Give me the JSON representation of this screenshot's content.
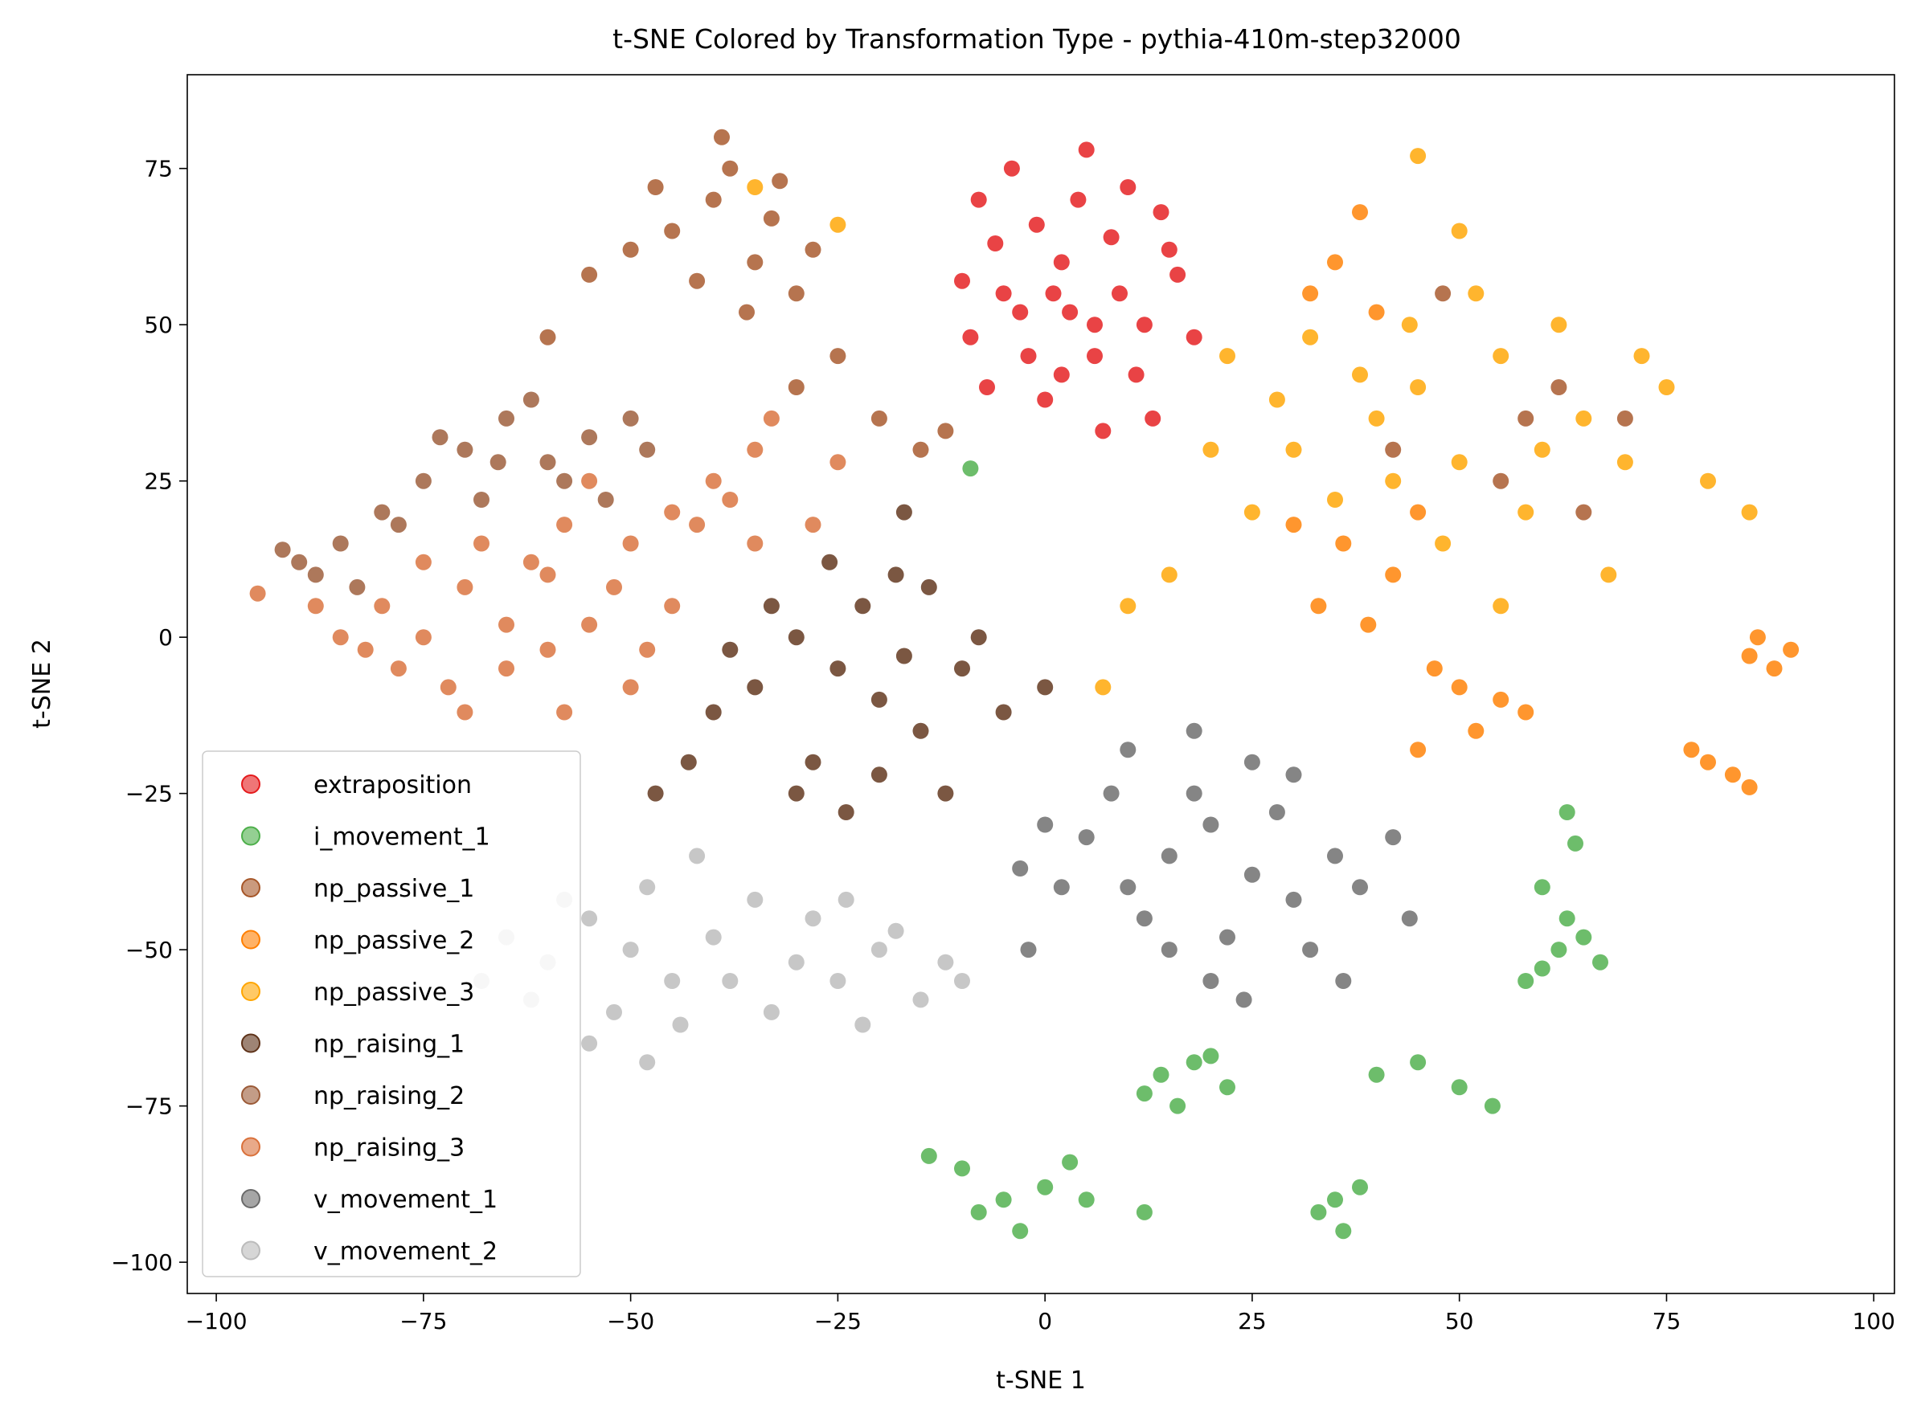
{
  "chart_data": {
    "type": "scatter",
    "title": "t-SNE Colored by Transformation Type - pythia-410m-step32000",
    "xlabel": "t-SNE 1",
    "ylabel": "t-SNE 2",
    "xlim": [
      -103.5,
      102.5
    ],
    "ylim": [
      -105,
      90
    ],
    "xticks": [
      -100,
      -75,
      -50,
      -25,
      0,
      25,
      50,
      75,
      100
    ],
    "yticks": [
      -100,
      -75,
      -50,
      -25,
      0,
      25,
      50,
      75
    ],
    "xtick_labels": [
      "−100",
      "−75",
      "−50",
      "−25",
      "0",
      "25",
      "50",
      "75",
      "100"
    ],
    "ytick_labels": [
      "−100",
      "−75",
      "−50",
      "−25",
      "0",
      "25",
      "50",
      "75"
    ],
    "grid": false,
    "legend_position": "lower-left",
    "series": [
      {
        "name": "extraposition",
        "color": "#e41a1c",
        "points": [
          [
            -3,
            52
          ],
          [
            2,
            60
          ],
          [
            6,
            45
          ],
          [
            -6,
            63
          ],
          [
            9,
            55
          ],
          [
            0,
            38
          ],
          [
            12,
            50
          ],
          [
            -10,
            57
          ],
          [
            4,
            70
          ],
          [
            -2,
            45
          ],
          [
            15,
            62
          ],
          [
            7,
            33
          ],
          [
            -7,
            40
          ],
          [
            11,
            42
          ],
          [
            3,
            52
          ],
          [
            -4,
            75
          ],
          [
            5,
            78
          ],
          [
            18,
            48
          ],
          [
            -1,
            66
          ],
          [
            8,
            64
          ],
          [
            13,
            35
          ],
          [
            -9,
            48
          ],
          [
            1,
            55
          ],
          [
            10,
            72
          ],
          [
            16,
            58
          ],
          [
            -5,
            55
          ],
          [
            6,
            50
          ],
          [
            2,
            42
          ],
          [
            14,
            68
          ],
          [
            -8,
            70
          ]
        ]
      },
      {
        "name": "i_movement_1",
        "color": "#4daf4a",
        "points": [
          [
            -10,
            -85
          ],
          [
            -5,
            -90
          ],
          [
            0,
            -88
          ],
          [
            -14,
            -83
          ],
          [
            -3,
            -95
          ],
          [
            3,
            -84
          ],
          [
            -8,
            -92
          ],
          [
            5,
            -90
          ],
          [
            14,
            -70
          ],
          [
            18,
            -68
          ],
          [
            22,
            -72
          ],
          [
            12,
            -73
          ],
          [
            20,
            -67
          ],
          [
            16,
            -75
          ],
          [
            35,
            -90
          ],
          [
            38,
            -88
          ],
          [
            33,
            -92
          ],
          [
            36,
            -95
          ],
          [
            62,
            -50
          ],
          [
            65,
            -48
          ],
          [
            60,
            -53
          ],
          [
            67,
            -52
          ],
          [
            63,
            -45
          ],
          [
            58,
            -55
          ],
          [
            50,
            -72
          ],
          [
            45,
            -68
          ],
          [
            54,
            -75
          ],
          [
            40,
            -70
          ],
          [
            63,
            -28
          ],
          [
            64,
            -33
          ],
          [
            12,
            -92
          ],
          [
            60,
            -40
          ],
          [
            -9,
            27
          ]
        ]
      },
      {
        "name": "np_passive_1",
        "color": "#a65628",
        "points": [
          [
            -40,
            70
          ],
          [
            -35,
            60
          ],
          [
            -45,
            65
          ],
          [
            -30,
            55
          ],
          [
            -38,
            75
          ],
          [
            -42,
            57
          ],
          [
            -33,
            67
          ],
          [
            -28,
            62
          ],
          [
            -47,
            72
          ],
          [
            -36,
            52
          ],
          [
            -50,
            62
          ],
          [
            -39,
            80
          ],
          [
            -32,
            73
          ],
          [
            -55,
            58
          ],
          [
            -25,
            45
          ],
          [
            -20,
            35
          ],
          [
            -15,
            30
          ],
          [
            58,
            35
          ],
          [
            62,
            40
          ],
          [
            65,
            20
          ],
          [
            55,
            25
          ],
          [
            48,
            55
          ],
          [
            70,
            35
          ],
          [
            42,
            30
          ],
          [
            -30,
            40
          ],
          [
            -60,
            48
          ],
          [
            -12,
            33
          ]
        ]
      },
      {
        "name": "np_passive_2",
        "color": "#ff7f00",
        "points": [
          [
            35,
            60
          ],
          [
            38,
            68
          ],
          [
            32,
            55
          ],
          [
            40,
            52
          ],
          [
            36,
            15
          ],
          [
            42,
            10
          ],
          [
            33,
            5
          ],
          [
            45,
            20
          ],
          [
            39,
            2
          ],
          [
            50,
            -8
          ],
          [
            55,
            -10
          ],
          [
            47,
            -5
          ],
          [
            58,
            -12
          ],
          [
            52,
            -15
          ],
          [
            85,
            -3
          ],
          [
            88,
            -5
          ],
          [
            90,
            -2
          ],
          [
            86,
            0
          ],
          [
            80,
            -20
          ],
          [
            83,
            -22
          ],
          [
            78,
            -18
          ],
          [
            85,
            -24
          ],
          [
            30,
            18
          ],
          [
            45,
            -18
          ]
        ]
      },
      {
        "name": "np_passive_3",
        "color": "#ffa500",
        "points": [
          [
            30,
            30
          ],
          [
            40,
            35
          ],
          [
            50,
            28
          ],
          [
            45,
            40
          ],
          [
            35,
            22
          ],
          [
            55,
            45
          ],
          [
            60,
            30
          ],
          [
            25,
            20
          ],
          [
            48,
            15
          ],
          [
            38,
            42
          ],
          [
            65,
            35
          ],
          [
            70,
            28
          ],
          [
            58,
            20
          ],
          [
            28,
            38
          ],
          [
            42,
            25
          ],
          [
            52,
            55
          ],
          [
            75,
            40
          ],
          [
            80,
            25
          ],
          [
            15,
            10
          ],
          [
            20,
            30
          ],
          [
            62,
            50
          ],
          [
            85,
            20
          ],
          [
            45,
            77
          ],
          [
            50,
            65
          ],
          [
            10,
            5
          ],
          [
            32,
            48
          ],
          [
            68,
            10
          ],
          [
            72,
            45
          ],
          [
            55,
            5
          ],
          [
            22,
            45
          ],
          [
            -25,
            66
          ],
          [
            -35,
            72
          ],
          [
            7,
            -8
          ],
          [
            44,
            50
          ]
        ]
      },
      {
        "name": "np_raising_1",
        "color": "#5e3219",
        "points": [
          [
            -25,
            -5
          ],
          [
            -20,
            -10
          ],
          [
            -30,
            0
          ],
          [
            -15,
            -15
          ],
          [
            -35,
            -8
          ],
          [
            -22,
            5
          ],
          [
            -10,
            -5
          ],
          [
            -28,
            -20
          ],
          [
            -18,
            10
          ],
          [
            -40,
            -12
          ],
          [
            -12,
            -25
          ],
          [
            -33,
            5
          ],
          [
            -24,
            -28
          ],
          [
            -8,
            0
          ],
          [
            -43,
            -20
          ],
          [
            -17,
            -3
          ],
          [
            -38,
            -2
          ],
          [
            -5,
            -12
          ],
          [
            -30,
            -25
          ],
          [
            -14,
            8
          ],
          [
            -26,
            12
          ],
          [
            -20,
            -22
          ],
          [
            -47,
            -25
          ],
          [
            -17,
            20
          ],
          [
            0,
            -8
          ]
        ]
      },
      {
        "name": "np_raising_2",
        "color": "#9b5a37",
        "points": [
          [
            -70,
            30
          ],
          [
            -65,
            35
          ],
          [
            -60,
            28
          ],
          [
            -75,
            25
          ],
          [
            -80,
            20
          ],
          [
            -85,
            15
          ],
          [
            -88,
            10
          ],
          [
            -90,
            12
          ],
          [
            -55,
            32
          ],
          [
            -50,
            35
          ],
          [
            -68,
            22
          ],
          [
            -62,
            38
          ],
          [
            -78,
            18
          ],
          [
            -73,
            32
          ],
          [
            -58,
            25
          ],
          [
            -83,
            8
          ],
          [
            -66,
            28
          ],
          [
            -92,
            14
          ],
          [
            -48,
            30
          ],
          [
            -53,
            22
          ]
        ]
      },
      {
        "name": "np_raising_3",
        "color": "#d9703a",
        "points": [
          [
            -80,
            5
          ],
          [
            -75,
            0
          ],
          [
            -70,
            8
          ],
          [
            -65,
            -5
          ],
          [
            -60,
            10
          ],
          [
            -55,
            2
          ],
          [
            -50,
            15
          ],
          [
            -45,
            20
          ],
          [
            -40,
            25
          ],
          [
            -35,
            30
          ],
          [
            -72,
            -8
          ],
          [
            -62,
            12
          ],
          [
            -52,
            8
          ],
          [
            -48,
            -2
          ],
          [
            -58,
            -12
          ],
          [
            -85,
            0
          ],
          [
            -78,
            -5
          ],
          [
            -68,
            15
          ],
          [
            -42,
            18
          ],
          [
            -38,
            22
          ],
          [
            -55,
            25
          ],
          [
            -65,
            2
          ],
          [
            -82,
            -2
          ],
          [
            -45,
            5
          ],
          [
            -70,
            -12
          ],
          [
            -60,
            -2
          ],
          [
            -50,
            -8
          ],
          [
            -88,
            5
          ],
          [
            -35,
            15
          ],
          [
            -28,
            18
          ],
          [
            -25,
            28
          ],
          [
            -33,
            35
          ],
          [
            -58,
            18
          ],
          [
            -75,
            12
          ],
          [
            -95,
            7
          ]
        ]
      },
      {
        "name": "v_movement_1",
        "color": "#6a6a6a",
        "points": [
          [
            15,
            -35
          ],
          [
            20,
            -30
          ],
          [
            25,
            -38
          ],
          [
            10,
            -40
          ],
          [
            30,
            -42
          ],
          [
            18,
            -25
          ],
          [
            22,
            -48
          ],
          [
            5,
            -32
          ],
          [
            35,
            -35
          ],
          [
            28,
            -28
          ],
          [
            12,
            -45
          ],
          [
            32,
            -50
          ],
          [
            8,
            -25
          ],
          [
            38,
            -40
          ],
          [
            20,
            -55
          ],
          [
            25,
            -20
          ],
          [
            2,
            -40
          ],
          [
            42,
            -32
          ],
          [
            15,
            -50
          ],
          [
            30,
            -22
          ],
          [
            0,
            -30
          ],
          [
            44,
            -45
          ],
          [
            18,
            -15
          ],
          [
            24,
            -58
          ],
          [
            -2,
            -50
          ],
          [
            36,
            -55
          ],
          [
            10,
            -18
          ],
          [
            -3,
            -37
          ]
        ]
      },
      {
        "name": "v_movement_2",
        "color": "#bbbbbb",
        "points": [
          [
            -50,
            -50
          ],
          [
            -55,
            -45
          ],
          [
            -45,
            -55
          ],
          [
            -60,
            -52
          ],
          [
            -48,
            -40
          ],
          [
            -52,
            -60
          ],
          [
            -40,
            -48
          ],
          [
            -58,
            -42
          ],
          [
            -62,
            -58
          ],
          [
            -44,
            -62
          ],
          [
            -25,
            -55
          ],
          [
            -20,
            -50
          ],
          [
            -30,
            -52
          ],
          [
            -15,
            -58
          ],
          [
            -22,
            -62
          ],
          [
            -28,
            -45
          ],
          [
            -12,
            -52
          ],
          [
            -18,
            -47
          ],
          [
            -33,
            -60
          ],
          [
            -35,
            -42
          ],
          [
            -42,
            -35
          ],
          [
            -55,
            -65
          ],
          [
            -65,
            -48
          ],
          [
            -38,
            -55
          ],
          [
            -24,
            -42
          ],
          [
            -10,
            -55
          ],
          [
            -48,
            -68
          ],
          [
            -68,
            -55
          ]
        ]
      }
    ]
  }
}
